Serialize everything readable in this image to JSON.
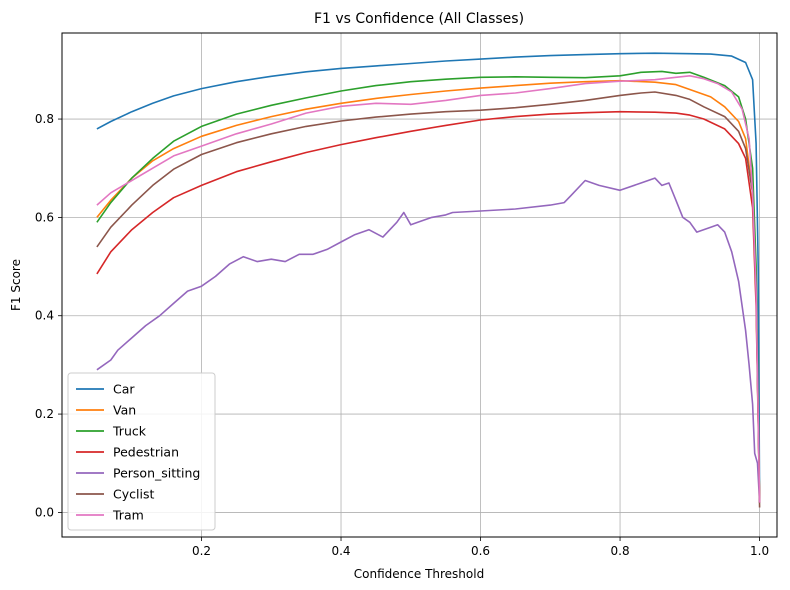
{
  "chart_data": {
    "type": "line",
    "title": "F1 vs Confidence (All Classes)",
    "xlabel": "Confidence Threshold",
    "ylabel": "F1 Score",
    "xlim": [
      0.0,
      1.025
    ],
    "ylim": [
      -0.05,
      0.975
    ],
    "xticks": [
      0.2,
      0.4,
      0.6,
      0.8,
      1.0
    ],
    "xtick_labels": [
      "0.2",
      "0.4",
      "0.6",
      "0.8",
      "1.0"
    ],
    "yticks": [
      0.0,
      0.2,
      0.4,
      0.6,
      0.8
    ],
    "ytick_labels": [
      "0.0",
      "0.2",
      "0.4",
      "0.6",
      "0.8"
    ],
    "grid": true,
    "legend_position": "lower-left",
    "series": [
      {
        "name": "Car",
        "color": "#1f77b4",
        "points": [
          [
            0.05,
            0.78
          ],
          [
            0.07,
            0.795
          ],
          [
            0.1,
            0.815
          ],
          [
            0.13,
            0.832
          ],
          [
            0.16,
            0.847
          ],
          [
            0.2,
            0.862
          ],
          [
            0.25,
            0.876
          ],
          [
            0.3,
            0.887
          ],
          [
            0.35,
            0.896
          ],
          [
            0.4,
            0.903
          ],
          [
            0.45,
            0.908
          ],
          [
            0.5,
            0.913
          ],
          [
            0.55,
            0.918
          ],
          [
            0.6,
            0.922
          ],
          [
            0.65,
            0.926
          ],
          [
            0.7,
            0.929
          ],
          [
            0.75,
            0.931
          ],
          [
            0.8,
            0.933
          ],
          [
            0.85,
            0.934
          ],
          [
            0.9,
            0.933
          ],
          [
            0.93,
            0.932
          ],
          [
            0.96,
            0.928
          ],
          [
            0.98,
            0.915
          ],
          [
            0.99,
            0.88
          ],
          [
            0.995,
            0.75
          ],
          [
            0.998,
            0.5
          ],
          [
            1.0,
            0.02
          ]
        ]
      },
      {
        "name": "Van",
        "color": "#ff7f0e",
        "points": [
          [
            0.05,
            0.6
          ],
          [
            0.07,
            0.635
          ],
          [
            0.1,
            0.68
          ],
          [
            0.13,
            0.715
          ],
          [
            0.16,
            0.74
          ],
          [
            0.2,
            0.765
          ],
          [
            0.25,
            0.787
          ],
          [
            0.3,
            0.805
          ],
          [
            0.35,
            0.82
          ],
          [
            0.4,
            0.832
          ],
          [
            0.45,
            0.842
          ],
          [
            0.5,
            0.85
          ],
          [
            0.55,
            0.857
          ],
          [
            0.6,
            0.863
          ],
          [
            0.65,
            0.868
          ],
          [
            0.7,
            0.873
          ],
          [
            0.75,
            0.876
          ],
          [
            0.8,
            0.878
          ],
          [
            0.85,
            0.875
          ],
          [
            0.88,
            0.87
          ],
          [
            0.9,
            0.86
          ],
          [
            0.93,
            0.845
          ],
          [
            0.95,
            0.825
          ],
          [
            0.97,
            0.795
          ],
          [
            0.98,
            0.76
          ],
          [
            0.99,
            0.65
          ],
          [
            0.995,
            0.45
          ],
          [
            1.0,
            0.02
          ]
        ]
      },
      {
        "name": "Truck",
        "color": "#2ca02c",
        "points": [
          [
            0.05,
            0.59
          ],
          [
            0.07,
            0.63
          ],
          [
            0.1,
            0.68
          ],
          [
            0.13,
            0.72
          ],
          [
            0.16,
            0.755
          ],
          [
            0.2,
            0.785
          ],
          [
            0.25,
            0.81
          ],
          [
            0.3,
            0.828
          ],
          [
            0.35,
            0.843
          ],
          [
            0.4,
            0.857
          ],
          [
            0.45,
            0.868
          ],
          [
            0.5,
            0.876
          ],
          [
            0.55,
            0.881
          ],
          [
            0.6,
            0.885
          ],
          [
            0.65,
            0.886
          ],
          [
            0.7,
            0.885
          ],
          [
            0.75,
            0.884
          ],
          [
            0.8,
            0.888
          ],
          [
            0.83,
            0.895
          ],
          [
            0.86,
            0.897
          ],
          [
            0.88,
            0.893
          ],
          [
            0.9,
            0.895
          ],
          [
            0.92,
            0.885
          ],
          [
            0.95,
            0.868
          ],
          [
            0.97,
            0.845
          ],
          [
            0.98,
            0.8
          ],
          [
            0.99,
            0.7
          ],
          [
            0.995,
            0.5
          ],
          [
            1.0,
            0.02
          ]
        ]
      },
      {
        "name": "Pedestrian",
        "color": "#d62728",
        "points": [
          [
            0.05,
            0.485
          ],
          [
            0.07,
            0.53
          ],
          [
            0.1,
            0.575
          ],
          [
            0.13,
            0.61
          ],
          [
            0.16,
            0.64
          ],
          [
            0.2,
            0.665
          ],
          [
            0.25,
            0.693
          ],
          [
            0.3,
            0.713
          ],
          [
            0.35,
            0.732
          ],
          [
            0.4,
            0.748
          ],
          [
            0.45,
            0.762
          ],
          [
            0.5,
            0.775
          ],
          [
            0.55,
            0.787
          ],
          [
            0.6,
            0.798
          ],
          [
            0.65,
            0.805
          ],
          [
            0.7,
            0.81
          ],
          [
            0.75,
            0.813
          ],
          [
            0.8,
            0.815
          ],
          [
            0.85,
            0.814
          ],
          [
            0.88,
            0.812
          ],
          [
            0.9,
            0.808
          ],
          [
            0.92,
            0.8
          ],
          [
            0.95,
            0.78
          ],
          [
            0.97,
            0.75
          ],
          [
            0.98,
            0.72
          ],
          [
            0.99,
            0.62
          ],
          [
            0.995,
            0.42
          ],
          [
            1.0,
            0.02
          ]
        ]
      },
      {
        "name": "Person_sitting",
        "color": "#9467bd",
        "points": [
          [
            0.05,
            0.29
          ],
          [
            0.07,
            0.31
          ],
          [
            0.08,
            0.33
          ],
          [
            0.1,
            0.355
          ],
          [
            0.12,
            0.38
          ],
          [
            0.14,
            0.4
          ],
          [
            0.16,
            0.425
          ],
          [
            0.18,
            0.45
          ],
          [
            0.2,
            0.46
          ],
          [
            0.22,
            0.48
          ],
          [
            0.24,
            0.505
          ],
          [
            0.26,
            0.52
          ],
          [
            0.28,
            0.51
          ],
          [
            0.3,
            0.515
          ],
          [
            0.32,
            0.51
          ],
          [
            0.34,
            0.525
          ],
          [
            0.36,
            0.525
          ],
          [
            0.38,
            0.535
          ],
          [
            0.4,
            0.55
          ],
          [
            0.42,
            0.565
          ],
          [
            0.44,
            0.575
          ],
          [
            0.46,
            0.56
          ],
          [
            0.48,
            0.59
          ],
          [
            0.49,
            0.61
          ],
          [
            0.5,
            0.585
          ],
          [
            0.51,
            0.59
          ],
          [
            0.53,
            0.6
          ],
          [
            0.55,
            0.605
          ],
          [
            0.56,
            0.61
          ],
          [
            0.6,
            0.613
          ],
          [
            0.65,
            0.617
          ],
          [
            0.7,
            0.625
          ],
          [
            0.72,
            0.63
          ],
          [
            0.73,
            0.645
          ],
          [
            0.75,
            0.675
          ],
          [
            0.77,
            0.665
          ],
          [
            0.8,
            0.655
          ],
          [
            0.83,
            0.67
          ],
          [
            0.85,
            0.68
          ],
          [
            0.86,
            0.665
          ],
          [
            0.87,
            0.67
          ],
          [
            0.88,
            0.635
          ],
          [
            0.89,
            0.6
          ],
          [
            0.9,
            0.59
          ],
          [
            0.91,
            0.57
          ],
          [
            0.93,
            0.58
          ],
          [
            0.94,
            0.585
          ],
          [
            0.95,
            0.57
          ],
          [
            0.96,
            0.53
          ],
          [
            0.97,
            0.47
          ],
          [
            0.975,
            0.42
          ],
          [
            0.98,
            0.37
          ],
          [
            0.985,
            0.3
          ],
          [
            0.99,
            0.22
          ],
          [
            0.993,
            0.12
          ],
          [
            0.997,
            0.1
          ],
          [
            1.0,
            0.02
          ]
        ]
      },
      {
        "name": "Cyclist",
        "color": "#8c564b",
        "points": [
          [
            0.05,
            0.54
          ],
          [
            0.07,
            0.58
          ],
          [
            0.1,
            0.625
          ],
          [
            0.13,
            0.665
          ],
          [
            0.16,
            0.698
          ],
          [
            0.2,
            0.728
          ],
          [
            0.25,
            0.752
          ],
          [
            0.3,
            0.77
          ],
          [
            0.35,
            0.785
          ],
          [
            0.4,
            0.796
          ],
          [
            0.45,
            0.804
          ],
          [
            0.5,
            0.81
          ],
          [
            0.55,
            0.815
          ],
          [
            0.6,
            0.818
          ],
          [
            0.65,
            0.823
          ],
          [
            0.7,
            0.83
          ],
          [
            0.75,
            0.838
          ],
          [
            0.8,
            0.848
          ],
          [
            0.83,
            0.853
          ],
          [
            0.85,
            0.855
          ],
          [
            0.88,
            0.848
          ],
          [
            0.9,
            0.84
          ],
          [
            0.92,
            0.825
          ],
          [
            0.95,
            0.805
          ],
          [
            0.97,
            0.775
          ],
          [
            0.98,
            0.74
          ],
          [
            0.99,
            0.65
          ],
          [
            0.995,
            0.45
          ],
          [
            1.0,
            0.01
          ]
        ]
      },
      {
        "name": "Tram",
        "color": "#e377c2",
        "points": [
          [
            0.05,
            0.625
          ],
          [
            0.07,
            0.65
          ],
          [
            0.1,
            0.675
          ],
          [
            0.13,
            0.7
          ],
          [
            0.16,
            0.725
          ],
          [
            0.2,
            0.745
          ],
          [
            0.25,
            0.77
          ],
          [
            0.3,
            0.79
          ],
          [
            0.35,
            0.812
          ],
          [
            0.4,
            0.826
          ],
          [
            0.45,
            0.832
          ],
          [
            0.5,
            0.83
          ],
          [
            0.55,
            0.838
          ],
          [
            0.6,
            0.848
          ],
          [
            0.65,
            0.853
          ],
          [
            0.7,
            0.862
          ],
          [
            0.75,
            0.872
          ],
          [
            0.8,
            0.877
          ],
          [
            0.85,
            0.88
          ],
          [
            0.88,
            0.885
          ],
          [
            0.9,
            0.888
          ],
          [
            0.92,
            0.882
          ],
          [
            0.94,
            0.872
          ],
          [
            0.96,
            0.855
          ],
          [
            0.975,
            0.82
          ],
          [
            0.985,
            0.76
          ],
          [
            0.99,
            0.65
          ],
          [
            0.995,
            0.45
          ],
          [
            1.0,
            0.02
          ]
        ]
      }
    ]
  }
}
